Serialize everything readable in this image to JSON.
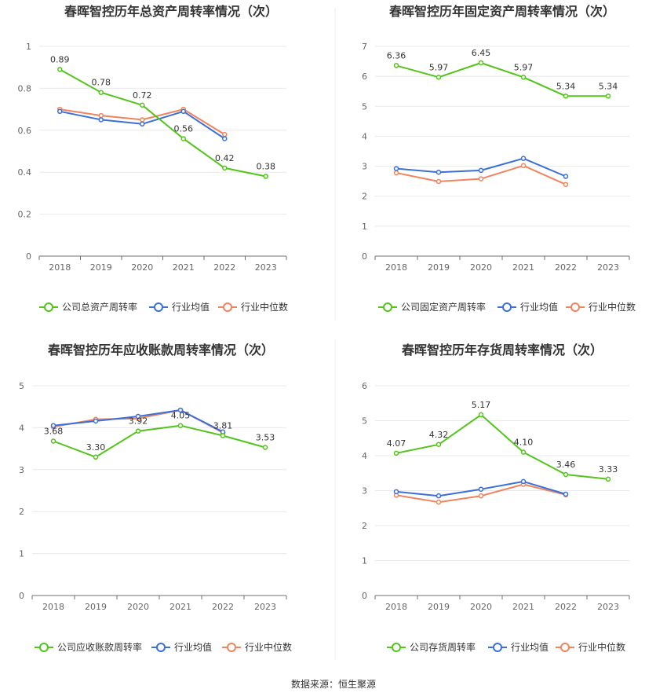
{
  "colors": {
    "company": "#52c41a",
    "avg": "#3b6fd9",
    "median": "#f0845e"
  },
  "source_text": "数据来源：恒生聚源",
  "legend_labels": {
    "avg": "行业均值",
    "median": "行业中位数"
  },
  "chart_data": [
    {
      "type": "line",
      "title": "春晖智控历年总资产周转率情况（次）",
      "categories": [
        "2018",
        "2019",
        "2020",
        "2021",
        "2022",
        "2023"
      ],
      "ylim": [
        0,
        1
      ],
      "yticks": [
        "0",
        "0.2",
        "0.4",
        "0.6",
        "0.8",
        "1"
      ],
      "grid": true,
      "legend": "bottom",
      "series": [
        {
          "name": "公司总资产周转率",
          "role": "company",
          "values": [
            0.89,
            0.78,
            0.72,
            0.56,
            0.42,
            0.38
          ],
          "labels": [
            "0.89",
            "0.78",
            "0.72",
            "0.56",
            "0.42",
            "0.38"
          ]
        },
        {
          "name": "行业均值",
          "role": "avg",
          "values": [
            0.69,
            0.65,
            0.63,
            0.69,
            0.56,
            null
          ]
        },
        {
          "name": "行业中位数",
          "role": "median",
          "values": [
            0.7,
            0.67,
            0.65,
            0.7,
            0.58,
            null
          ]
        }
      ]
    },
    {
      "type": "line",
      "title": "春晖智控历年固定资产周转率情况（次）",
      "categories": [
        "2018",
        "2019",
        "2020",
        "2021",
        "2022",
        "2023"
      ],
      "ylim": [
        0,
        7
      ],
      "yticks": [
        "0",
        "1",
        "2",
        "3",
        "4",
        "5",
        "6",
        "7"
      ],
      "grid": true,
      "legend": "bottom",
      "series": [
        {
          "name": "公司固定资产周转率",
          "role": "company",
          "values": [
            6.36,
            5.97,
            6.45,
            5.97,
            5.34,
            5.34
          ],
          "labels": [
            "6.36",
            "5.97",
            "6.45",
            "5.97",
            "5.34",
            "5.34"
          ]
        },
        {
          "name": "行业均值",
          "role": "avg",
          "values": [
            2.92,
            2.8,
            2.86,
            3.26,
            2.66,
            null
          ]
        },
        {
          "name": "行业中位数",
          "role": "median",
          "values": [
            2.78,
            2.49,
            2.58,
            3.02,
            2.39,
            null
          ]
        }
      ]
    },
    {
      "type": "line",
      "title": "春晖智控历年应收账款周转率情况（次）",
      "categories": [
        "2018",
        "2019",
        "2020",
        "2021",
        "2022",
        "2023"
      ],
      "ylim": [
        0,
        5
      ],
      "yticks": [
        "0",
        "1",
        "2",
        "3",
        "4",
        "5"
      ],
      "grid": true,
      "legend": "bottom",
      "series": [
        {
          "name": "公司应收账款周转率",
          "role": "company",
          "values": [
            3.68,
            3.3,
            3.92,
            4.05,
            3.81,
            3.53
          ],
          "labels": [
            "3.68",
            "3.30",
            "3.92",
            "4.05",
            "3.81",
            "3.53"
          ]
        },
        {
          "name": "行业均值",
          "role": "avg",
          "values": [
            4.05,
            4.16,
            4.27,
            4.42,
            3.9,
            null
          ]
        },
        {
          "name": "行业中位数",
          "role": "median",
          "values": [
            4.02,
            4.2,
            4.22,
            4.42,
            3.88,
            null
          ]
        }
      ]
    },
    {
      "type": "line",
      "title": "春晖智控历年存货周转率情况（次）",
      "categories": [
        "2018",
        "2019",
        "2020",
        "2021",
        "2022",
        "2023"
      ],
      "ylim": [
        0,
        6
      ],
      "yticks": [
        "0",
        "1",
        "2",
        "3",
        "4",
        "5",
        "6"
      ],
      "grid": true,
      "legend": "bottom",
      "series": [
        {
          "name": "公司存货周转率",
          "role": "company",
          "values": [
            4.07,
            4.32,
            5.17,
            4.1,
            3.46,
            3.33
          ],
          "labels": [
            "4.07",
            "4.32",
            "5.17",
            "4.10",
            "3.46",
            "3.33"
          ]
        },
        {
          "name": "行业均值",
          "role": "avg",
          "values": [
            2.97,
            2.85,
            3.04,
            3.26,
            2.9,
            null
          ]
        },
        {
          "name": "行业中位数",
          "role": "median",
          "values": [
            2.87,
            2.67,
            2.85,
            3.18,
            2.88,
            null
          ]
        }
      ]
    }
  ]
}
